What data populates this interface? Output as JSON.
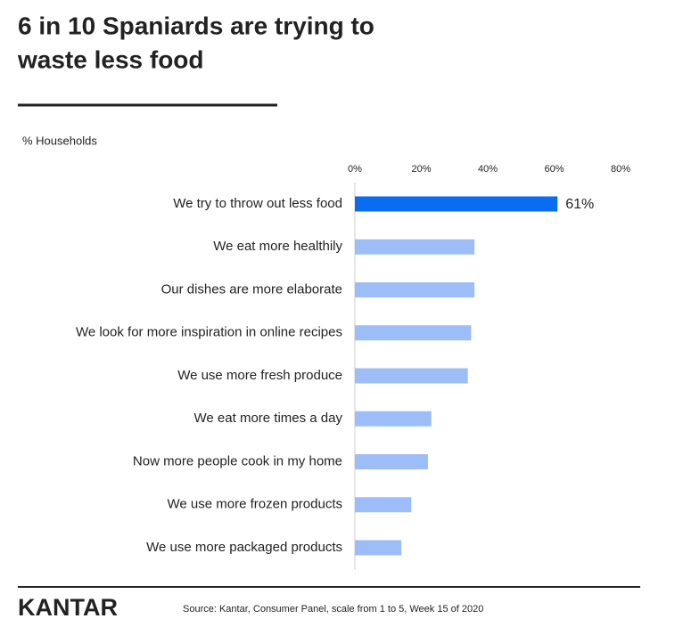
{
  "chart_data": {
    "type": "bar",
    "orientation": "horizontal",
    "title": [
      "6 in 10 Spaniards are trying to",
      "waste less food"
    ],
    "subtitle": "% Households",
    "categories": [
      "We try to throw out less food",
      "We eat more healthily",
      "Our dishes are more elaborate",
      "We look for more inspiration in online recipes",
      "We use more fresh produce",
      "We eat more times a day",
      "Now more people cook in my home",
      "We use more frozen products",
      "We use more packaged products"
    ],
    "values": [
      61,
      36,
      36,
      35,
      34,
      23,
      22,
      17,
      14
    ],
    "value_labels": [
      "61%",
      null,
      null,
      null,
      null,
      null,
      null,
      null,
      null
    ],
    "colors": [
      "#0a6cf0",
      "#9dbdf8",
      "#9dbdf8",
      "#9dbdf8",
      "#9dbdf8",
      "#9dbdf8",
      "#9dbdf8",
      "#9dbdf8",
      "#9dbdf8"
    ],
    "xlim": [
      0,
      80
    ],
    "xticks": [
      {
        "value": 0,
        "label": "0%"
      },
      {
        "value": 20,
        "label": "20%"
      },
      {
        "value": 40,
        "label": "40%"
      },
      {
        "value": 60,
        "label": "60%"
      },
      {
        "value": 80,
        "label": "80%"
      }
    ],
    "brand": "KANTAR",
    "source": "Source: Kantar, Consumer Panel, scale from 1 to 5, Week 15 of 2020"
  }
}
